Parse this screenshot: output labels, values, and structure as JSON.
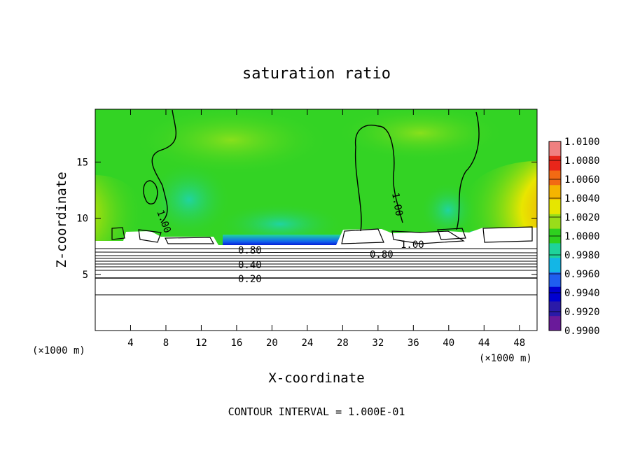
{
  "chart_data": {
    "type": "heatmap",
    "title": "saturation ratio",
    "xlabel": "X-coordinate",
    "ylabel": "Z-coordinate",
    "x_unit": "(×1000 m)",
    "z_unit": "(×1000 m)",
    "xlim": [
      0,
      50
    ],
    "ylim": [
      0,
      19.7
    ],
    "x_ticks": [
      4,
      8,
      12,
      16,
      20,
      24,
      28,
      32,
      36,
      40,
      44,
      48
    ],
    "y_ticks": [
      5,
      10,
      15
    ],
    "contour_labels": [
      "1.00",
      "1.00",
      "1.00",
      "0.80",
      "0.80",
      "0.40",
      "0.20"
    ],
    "footer": "CONTOUR INTERVAL = 1.000E-01",
    "colorbar": {
      "labels": [
        "1.0100",
        "1.0080",
        "1.0060",
        "1.0040",
        "1.0020",
        "1.0000",
        "0.9980",
        "0.9960",
        "0.9940",
        "0.9920",
        "0.9900"
      ],
      "colors": [
        "#f08080",
        "#e8261a",
        "#f26a13",
        "#f5b400",
        "#e6e600",
        "#99dd1a",
        "#2ed11f",
        "#1ed39b",
        "#13b6e6",
        "#1f5ef0",
        "#0000d0",
        "#2a1aa8",
        "#6a1a9a"
      ]
    },
    "field_colors": {
      "background": "#33d324",
      "light": "#88e01c",
      "cyan": "#20d4a0",
      "blue": "#1060f0",
      "navy": "#0000c8",
      "yellow": "#e8e600",
      "orange": "#f28a10",
      "red": "#e82a1a"
    },
    "lower_region": "unsaturated air below ~8 km shown as white with line contours"
  }
}
